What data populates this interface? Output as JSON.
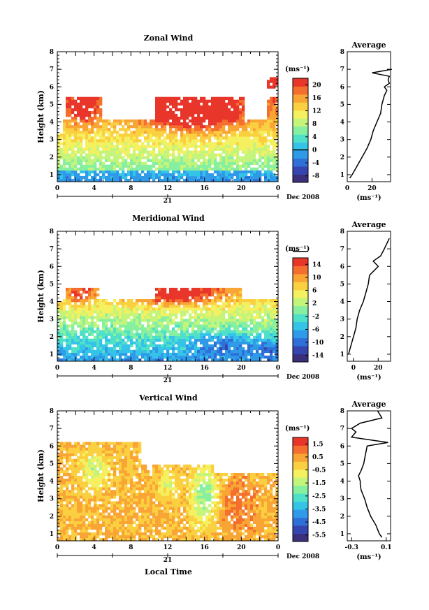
{
  "figure": {
    "date_label": "Dec 2008",
    "day_label": "21",
    "xlabel": "Local Time",
    "height_label": "Height (km)",
    "unit_label": "(ms⁻¹)",
    "colormap": [
      "#3a2f7a",
      "#3545b0",
      "#2f6fd8",
      "#2f9be8",
      "#35c4e8",
      "#4fe0c8",
      "#86f0a0",
      "#c4f57a",
      "#f4f060",
      "#fbd040",
      "#f9a535",
      "#f46e2e",
      "#e8362a"
    ]
  },
  "chart_data": [
    {
      "type": "heatmap",
      "title": "Zonal Wind",
      "x": [
        0,
        4,
        8,
        12,
        16,
        20,
        0
      ],
      "xlim": [
        0,
        24
      ],
      "ylim": [
        0.6,
        8
      ],
      "yticks": [
        1,
        2,
        3,
        4,
        5,
        6,
        7,
        8
      ],
      "ylabel": "Height (km)",
      "colorbar": {
        "ticks": [
          20,
          16,
          12,
          8,
          4,
          0,
          -4,
          -8
        ],
        "range": [
          -10,
          22
        ],
        "zero_line": 0
      },
      "profile": {
        "title": "Average",
        "xlabel": "(ms⁻¹)",
        "xticks": [
          0,
          20
        ],
        "xlim": [
          0,
          35
        ],
        "height": [
          0.8,
          1.0,
          1.5,
          2.0,
          2.5,
          3.0,
          3.5,
          4.0,
          4.5,
          5.0,
          5.5,
          5.8,
          6.0,
          6.2,
          6.4,
          6.6,
          6.8,
          7.0
        ],
        "values": [
          2,
          4,
          8,
          12,
          16,
          19,
          21,
          24,
          27,
          28,
          30,
          32,
          30,
          34,
          33,
          34,
          20,
          36
        ]
      }
    },
    {
      "type": "heatmap",
      "title": "Meridional Wind",
      "x": [
        0,
        4,
        8,
        12,
        16,
        20,
        0
      ],
      "xlim": [
        0,
        24
      ],
      "ylim": [
        0.6,
        8
      ],
      "yticks": [
        1,
        2,
        3,
        4,
        5,
        6,
        7,
        8
      ],
      "ylabel": "Height (km)",
      "colorbar": {
        "ticks": [
          14,
          10,
          6,
          2,
          -2,
          -6,
          -10,
          -14
        ],
        "range": [
          -16,
          16
        ],
        "zero_line": 0
      },
      "profile": {
        "title": "Average",
        "xlabel": "(ms⁻¹)",
        "xticks": [
          0,
          20
        ],
        "xlim": [
          -5,
          30
        ],
        "height": [
          1.0,
          1.5,
          2.0,
          2.5,
          3.0,
          3.5,
          4.0,
          4.5,
          5.0,
          5.5,
          6.0,
          6.3,
          6.6,
          7.0,
          7.3,
          7.6
        ],
        "values": [
          -4,
          -2,
          0,
          2,
          3,
          5,
          8,
          10,
          12,
          13,
          20,
          16,
          22,
          25,
          27,
          29
        ]
      }
    },
    {
      "type": "heatmap",
      "title": "Vertical Wind",
      "x": [
        0,
        4,
        8,
        12,
        16,
        20,
        0
      ],
      "xlim": [
        0,
        24
      ],
      "ylim": [
        0.6,
        8
      ],
      "yticks": [
        1,
        2,
        3,
        4,
        5,
        6,
        7,
        8
      ],
      "ylabel": "Height (km)",
      "colorbar": {
        "ticks": [
          1.5,
          0.5,
          -0.5,
          -1.5,
          -2.5,
          -3.5,
          -4.5,
          -5.5
        ],
        "range": [
          -6,
          2
        ],
        "zero_line": null
      },
      "profile": {
        "title": "Average",
        "xlabel": "(ms⁻¹)",
        "xticks": [
          -0.3,
          0.1
        ],
        "xlim": [
          -0.35,
          0.15
        ],
        "height": [
          0.8,
          1.0,
          1.5,
          2.0,
          2.5,
          3.0,
          3.5,
          3.8,
          4.0,
          4.3,
          4.6,
          5.0,
          5.5,
          6.0,
          6.2,
          6.5,
          6.8,
          7.0,
          7.3,
          7.6,
          8.0
        ],
        "values": [
          0.05,
          0.02,
          -0.02,
          -0.08,
          -0.12,
          -0.15,
          -0.19,
          -0.2,
          -0.2,
          -0.22,
          -0.19,
          -0.16,
          -0.14,
          -0.12,
          0.12,
          -0.3,
          -0.25,
          -0.3,
          -0.2,
          0.05,
          0.0
        ]
      }
    }
  ]
}
